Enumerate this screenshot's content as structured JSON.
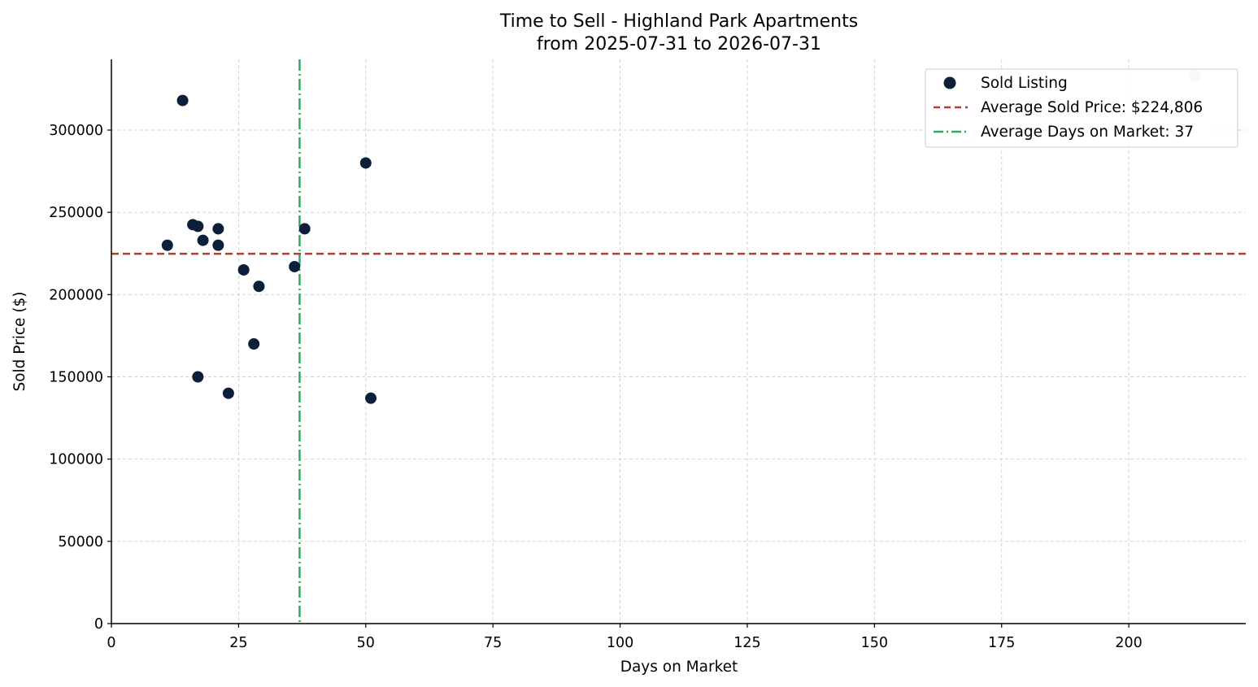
{
  "chart_data": {
    "type": "scatter",
    "title": "Time to Sell - Highland Park Apartments",
    "subtitle": "from 2025-07-31 to 2026-07-31",
    "xlabel": "Days on Market",
    "ylabel": "Sold Price ($)",
    "xlim": [
      0,
      223
    ],
    "ylim": [
      0,
      343000
    ],
    "xticks": [
      0,
      25,
      50,
      75,
      100,
      125,
      150,
      175,
      200
    ],
    "yticks": [
      0,
      50000,
      100000,
      150000,
      200000,
      250000,
      300000
    ],
    "grid": true,
    "legend_position": "top-right",
    "series": [
      {
        "name": "Sold Listing",
        "color": "#0b1f3a",
        "points": [
          [
            14,
            318000
          ],
          [
            11,
            230000
          ],
          [
            16,
            242500
          ],
          [
            17,
            241500
          ],
          [
            18,
            233000
          ],
          [
            21,
            240000
          ],
          [
            21,
            230000
          ],
          [
            26,
            215000
          ],
          [
            29,
            205000
          ],
          [
            28,
            170000
          ],
          [
            17,
            150000
          ],
          [
            23,
            140000
          ],
          [
            36,
            217000
          ],
          [
            38,
            240000
          ],
          [
            50,
            280000
          ],
          [
            51,
            137000
          ]
        ]
      }
    ],
    "outlier": {
      "color": "#c3ccd5",
      "points": [
        [
          213,
          333000
        ]
      ]
    },
    "reference_lines": {
      "avg_price": {
        "label": "Average Sold Price: $224,806",
        "value": 224806,
        "color": "#c0392b"
      },
      "avg_days": {
        "label": "Average Days on Market: 37",
        "value": 37,
        "color": "#27ae60"
      }
    }
  }
}
